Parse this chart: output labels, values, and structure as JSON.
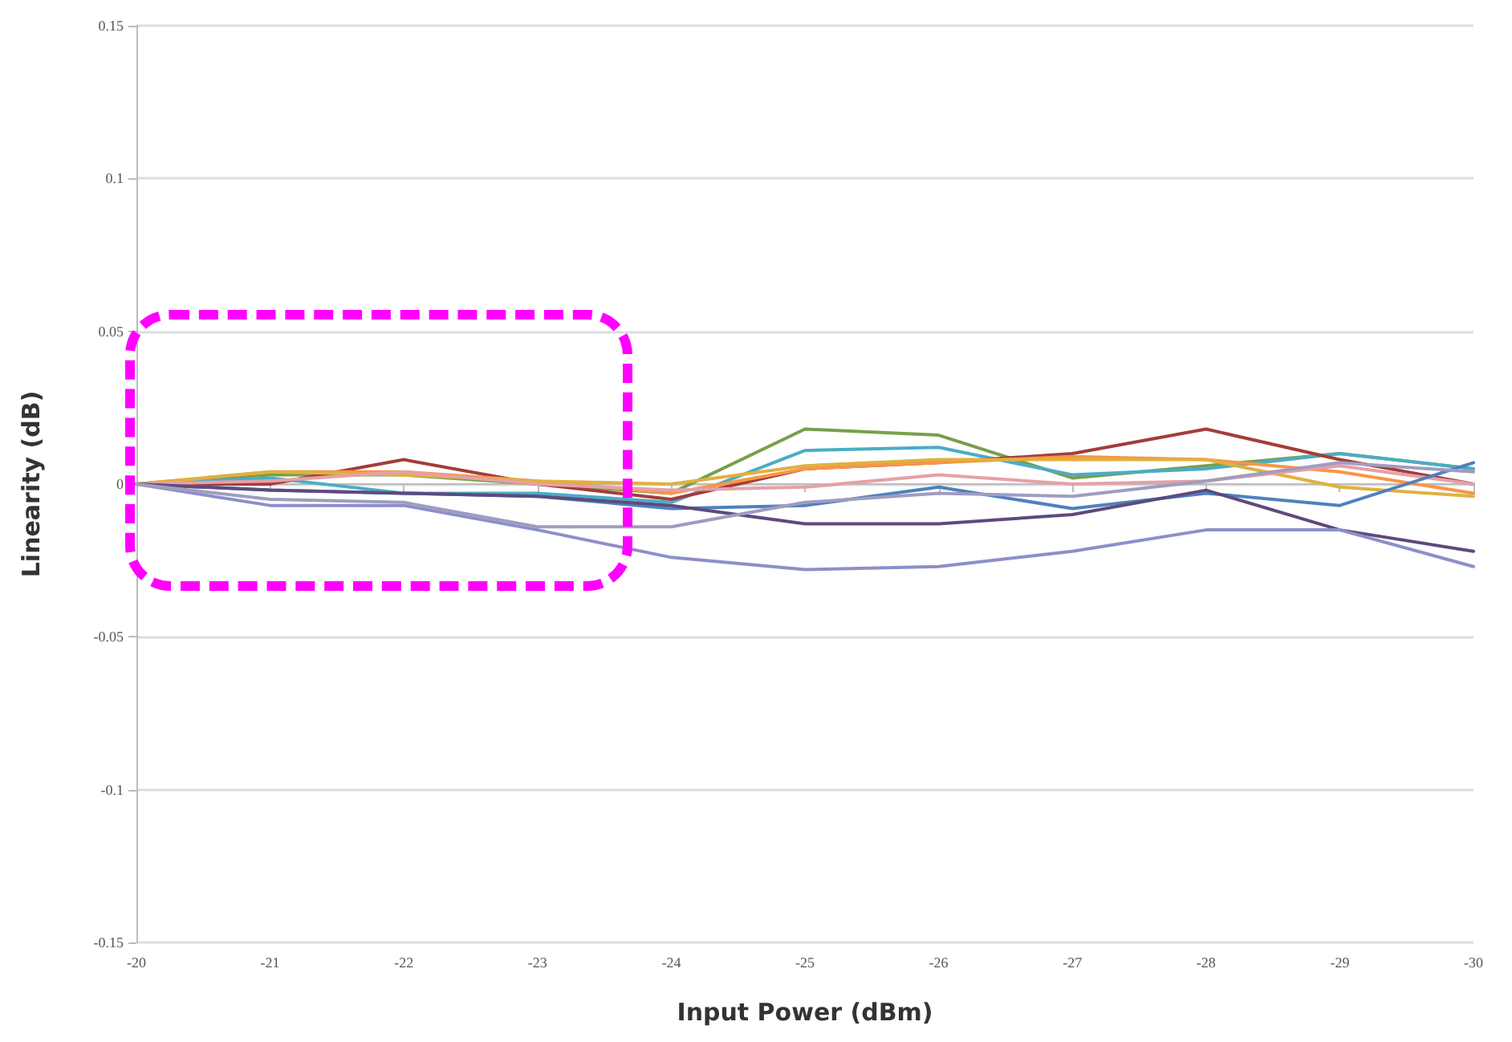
{
  "chart_data": {
    "type": "line",
    "xlabel": "Input Power (dBm)",
    "ylabel": "Linearity (dB)",
    "categories": [
      "-20",
      "-21",
      "-22",
      "-23",
      "-24",
      "-25",
      "-26",
      "-27",
      "-28",
      "-29",
      "-30"
    ],
    "ylim": [
      -0.15,
      0.15
    ],
    "yticks": [
      -0.15,
      -0.1,
      -0.05,
      0,
      0.05,
      0.1,
      0.15
    ],
    "grid": "y",
    "marker": "none",
    "line_style": "solid",
    "series": [
      {
        "color": "#77a04a",
        "values": [
          0,
          0.003,
          0.003,
          0,
          -0.003,
          0.018,
          0.016,
          0.002,
          0.006,
          0.01,
          0.005
        ]
      },
      {
        "color": "#4bacc6",
        "values": [
          0,
          0.002,
          -0.003,
          -0.003,
          -0.006,
          0.011,
          0.012,
          0.003,
          0.005,
          0.01,
          0.005
        ]
      },
      {
        "color": "#a33d3b",
        "values": [
          0,
          0,
          0.008,
          0,
          -0.005,
          0.005,
          0.007,
          0.01,
          0.018,
          0.008,
          0
        ]
      },
      {
        "color": "#f79646",
        "values": [
          0,
          0.004,
          0.004,
          0.001,
          -0.003,
          0.005,
          0.007,
          0.009,
          0.008,
          0.004,
          -0.003
        ]
      },
      {
        "color": "#e0b040",
        "values": [
          0,
          0.004,
          0.003,
          0.001,
          0,
          0.006,
          0.008,
          0.008,
          0.008,
          -0.001,
          -0.004
        ]
      },
      {
        "color": "#e6a0a8",
        "values": [
          0,
          0.001,
          0.004,
          0,
          -0.002,
          -0.001,
          0.003,
          0,
          0.001,
          0.006,
          0
        ]
      },
      {
        "color": "#4f81bd",
        "values": [
          0,
          -0.002,
          -0.003,
          -0.004,
          -0.008,
          -0.007,
          -0.001,
          -0.008,
          -0.003,
          -0.007,
          0.007
        ]
      },
      {
        "color": "#5e4a7d",
        "values": [
          0,
          -0.002,
          -0.003,
          -0.004,
          -0.007,
          -0.013,
          -0.013,
          -0.01,
          -0.002,
          -0.015,
          -0.022
        ]
      },
      {
        "color": "#8c8fc8",
        "values": [
          0,
          -0.007,
          -0.007,
          -0.015,
          -0.024,
          -0.028,
          -0.027,
          -0.022,
          -0.015,
          -0.015,
          -0.027
        ]
      },
      {
        "color": "#a09cc0",
        "values": [
          0,
          -0.005,
          -0.006,
          -0.014,
          -0.014,
          -0.006,
          -0.003,
          -0.004,
          0.001,
          0.007,
          0.004
        ]
      }
    ]
  }
}
